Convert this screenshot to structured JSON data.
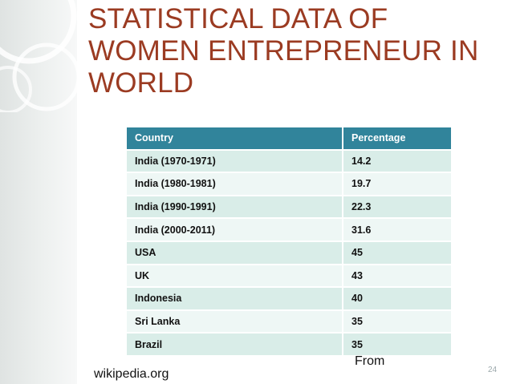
{
  "slide": {
    "title": "STATISTICAL DATA OF WOMEN ENTREPRENEUR IN WORLD",
    "table": {
      "headers": [
        "Country",
        "Percentage"
      ],
      "rows": [
        [
          "India (1970-1971)",
          "14.2"
        ],
        [
          "India (1980-1981)",
          "19.7"
        ],
        [
          "India (1990-1991)",
          "22.3"
        ],
        [
          "India (2000-2011)",
          "31.6"
        ],
        [
          "USA",
          "45"
        ],
        [
          "UK",
          "43"
        ],
        [
          "Indonesia",
          "40"
        ],
        [
          "Sri Lanka",
          "35"
        ],
        [
          "Brazil",
          "35"
        ]
      ]
    },
    "source_from": "From",
    "source_site": "wikipedia.org",
    "page_number": "24"
  },
  "colors": {
    "title": "#9b3b22",
    "header_bg": "#31849b",
    "row_bg": "#d9ede8",
    "row_alt_bg": "#eef7f5"
  }
}
